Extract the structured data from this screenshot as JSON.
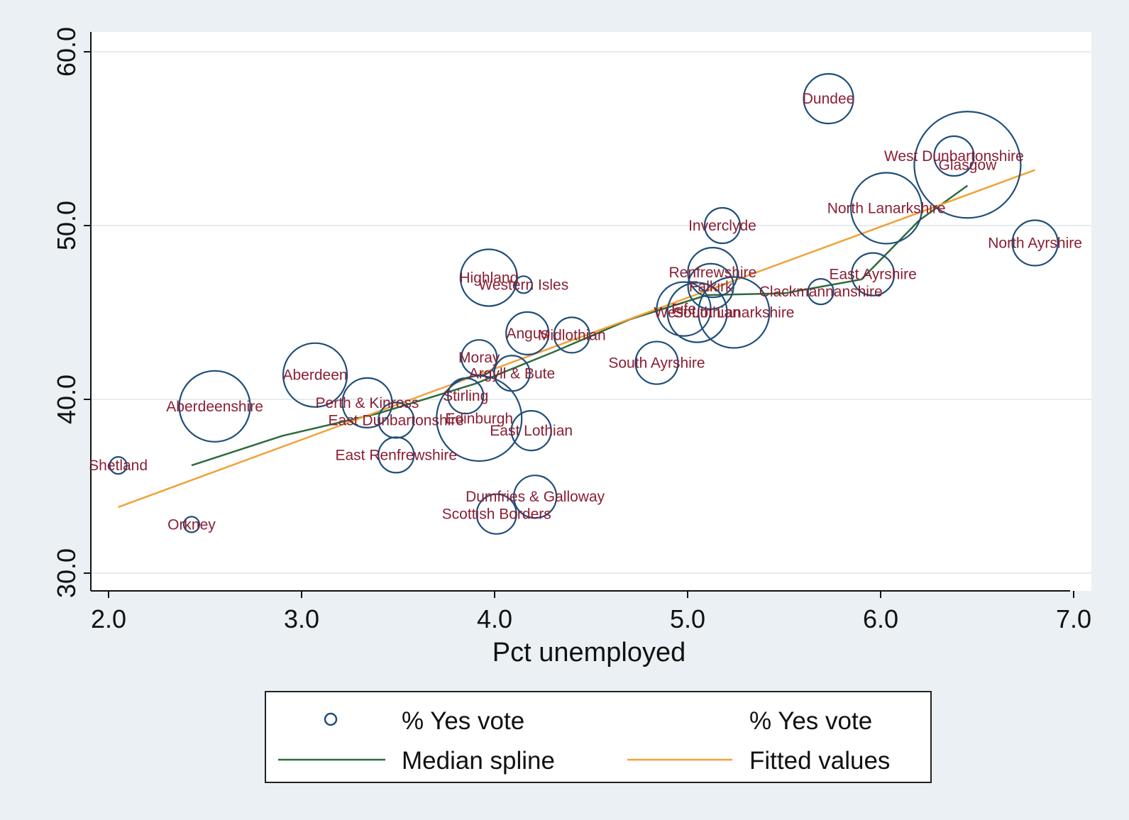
{
  "chart_data": {
    "type": "scatter",
    "title": "",
    "xlabel": "Pct unemployed",
    "ylabel": "",
    "xlim": [
      1.9,
      7.1
    ],
    "ylim": [
      29.0,
      61.0
    ],
    "x_ticks": [
      "2.0",
      "3.0",
      "4.0",
      "5.0",
      "6.0",
      "7.0"
    ],
    "y_ticks": [
      "30.0",
      "40.0",
      "50.0",
      "60.0"
    ],
    "grid": true,
    "legend_position": "bottom",
    "colors": {
      "markers": "#1f4e79",
      "labels": "#8a1f33",
      "median_spline": "#2e6b3c",
      "fitted_values": "#f0a23a",
      "background": "#eaf0f3",
      "plot_area": "#ffffff"
    },
    "legend": [
      {
        "key": "marker-yes",
        "label": "% Yes vote"
      },
      {
        "key": "marker-yes-labels",
        "label": "% Yes vote"
      },
      {
        "key": "median-spline",
        "label": "Median spline"
      },
      {
        "key": "fitted-values",
        "label": "Fitted values"
      }
    ],
    "points": [
      {
        "label": "Dundee",
        "x": 5.73,
        "y": 57.3,
        "size": 35
      },
      {
        "label": "West Dunbartonshire",
        "x": 6.38,
        "y": 54.0,
        "size": 28
      },
      {
        "label": "Glasgow",
        "x": 6.45,
        "y": 53.5,
        "size": 75
      },
      {
        "label": "North Lanarkshire",
        "x": 6.03,
        "y": 51.0,
        "size": 50
      },
      {
        "label": "North Ayrshire",
        "x": 6.8,
        "y": 49.0,
        "size": 32
      },
      {
        "label": "Inverclyde",
        "x": 5.18,
        "y": 50.0,
        "size": 25
      },
      {
        "label": "Renfrewshire",
        "x": 5.13,
        "y": 47.3,
        "size": 35
      },
      {
        "label": "East Ayrshire",
        "x": 5.96,
        "y": 47.2,
        "size": 30
      },
      {
        "label": "Clackmannanshire",
        "x": 5.69,
        "y": 46.2,
        "size": 18
      },
      {
        "label": "Falkirk",
        "x": 5.12,
        "y": 46.5,
        "size": 32
      },
      {
        "label": "South Lanarkshire",
        "x": 5.24,
        "y": 45.0,
        "size": 50
      },
      {
        "label": "West Lothian",
        "x": 5.05,
        "y": 45.0,
        "size": 42
      },
      {
        "label": "Fife",
        "x": 4.98,
        "y": 45.2,
        "size": 38
      },
      {
        "label": "Highland",
        "x": 3.97,
        "y": 47.0,
        "size": 40
      },
      {
        "label": "Western Isles",
        "x": 4.15,
        "y": 46.6,
        "size": 12
      },
      {
        "label": "Angus",
        "x": 4.17,
        "y": 43.8,
        "size": 30
      },
      {
        "label": "Midlothian",
        "x": 4.4,
        "y": 43.7,
        "size": 25
      },
      {
        "label": "South Ayrshire",
        "x": 4.84,
        "y": 42.1,
        "size": 30
      },
      {
        "label": "Moray",
        "x": 3.92,
        "y": 42.4,
        "size": 25
      },
      {
        "label": "Argyll & Bute",
        "x": 4.09,
        "y": 41.5,
        "size": 25
      },
      {
        "label": "Aberdeen",
        "x": 3.07,
        "y": 41.4,
        "size": 45
      },
      {
        "label": "Aberdeenshire",
        "x": 2.55,
        "y": 39.6,
        "size": 50
      },
      {
        "label": "Stirling",
        "x": 3.85,
        "y": 40.2,
        "size": 25
      },
      {
        "label": "Perth & Kinross",
        "x": 3.34,
        "y": 39.8,
        "size": 35
      },
      {
        "label": "East Dunbartonshire",
        "x": 3.49,
        "y": 38.8,
        "size": 25
      },
      {
        "label": "Edinburgh",
        "x": 3.92,
        "y": 38.9,
        "size": 60
      },
      {
        "label": "East Lothian",
        "x": 4.19,
        "y": 38.2,
        "size": 28
      },
      {
        "label": "East Renfrewshire",
        "x": 3.49,
        "y": 36.8,
        "size": 25
      },
      {
        "label": "Shetland",
        "x": 2.05,
        "y": 36.2,
        "size": 12
      },
      {
        "label": "Dumfries & Galloway",
        "x": 4.21,
        "y": 34.4,
        "size": 30
      },
      {
        "label": "Scottish Borders",
        "x": 4.01,
        "y": 33.4,
        "size": 28
      },
      {
        "label": "Orkney",
        "x": 2.43,
        "y": 32.8,
        "size": 11
      }
    ],
    "series": [
      {
        "name": "Median spline",
        "x": [
          2.43,
          2.9,
          3.4,
          3.9,
          4.3,
          4.7,
          5.1,
          5.5,
          5.9,
          6.2,
          6.45
        ],
        "y": [
          36.2,
          37.9,
          39.2,
          40.9,
          42.7,
          44.6,
          46.0,
          46.1,
          46.9,
          50.3,
          52.3
        ]
      },
      {
        "name": "Fitted values",
        "x": [
          2.05,
          6.8
        ],
        "y": [
          33.8,
          53.2
        ]
      }
    ]
  }
}
